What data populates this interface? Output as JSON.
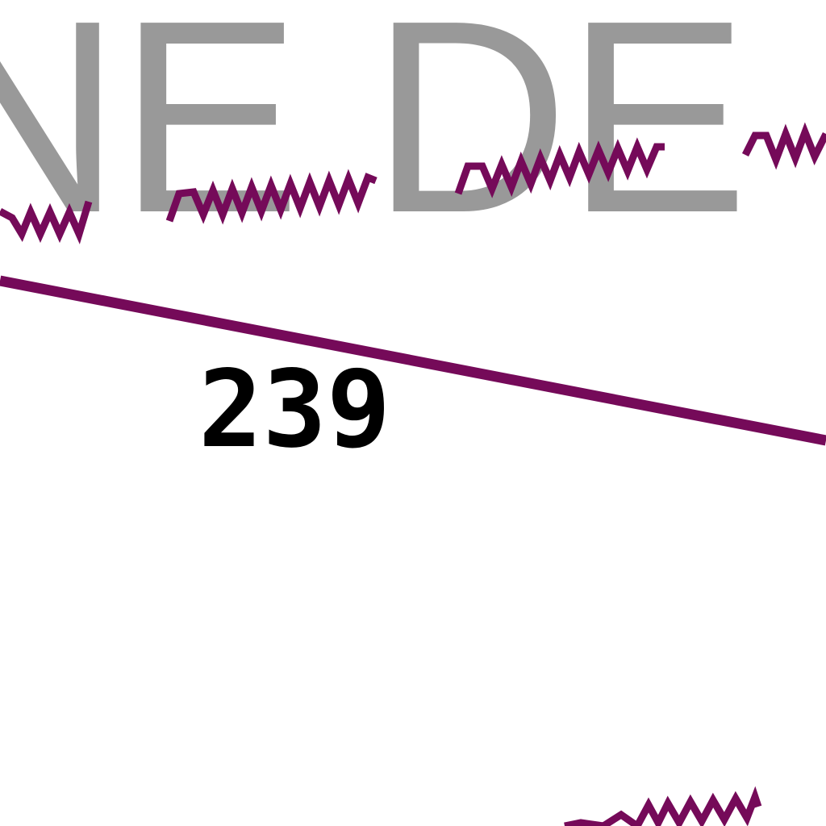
{
  "map": {
    "place_name_fragment": "NE DE P",
    "parcel_number": "239",
    "colors": {
      "background": "#ffffff",
      "place_name": "#999999",
      "boundary": "#750a59",
      "parcel_number": "#000000"
    },
    "symbols": [
      "wavy-edge-line",
      "straight-boundary-line"
    ]
  }
}
